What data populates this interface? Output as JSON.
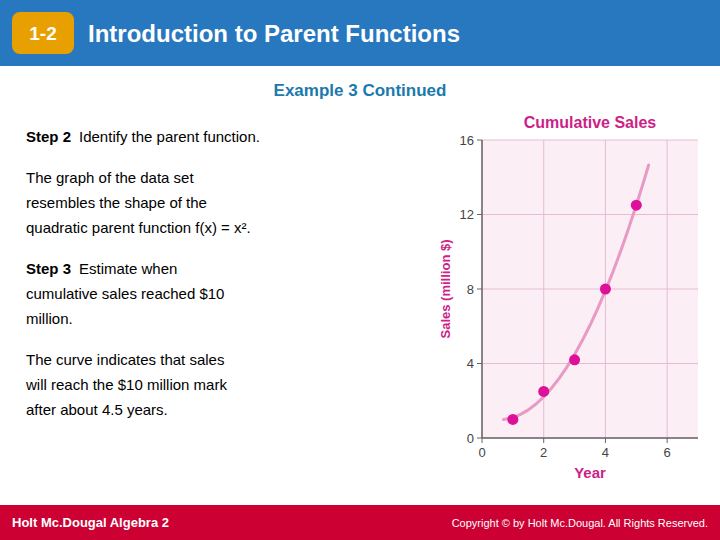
{
  "page": {
    "badge": "1-2",
    "heading": "Introduction to Parent Functions",
    "subtitle": "Example 3 Continued",
    "body": [
      {
        "bold": "Step 2",
        "lines": [
          "Identify the parent function."
        ]
      },
      {
        "lines": [
          "The graph of the data set",
          "resembles the shape of the",
          "quadratic parent function f(x) = x²."
        ]
      },
      {
        "bold": "Step 3",
        "lines": [
          "Estimate when",
          "cumulative sales reached $10",
          "million."
        ]
      },
      {
        "lines": [
          "The curve indicates that sales",
          "will reach the $10 million mark",
          "after about 4.5 years."
        ]
      }
    ],
    "footer_left": "Holt Mc.Dougal Algebra 2",
    "footer_right": "Copyright © by Holt Mc.Dougal. All Rights Reserved."
  },
  "chart_data": {
    "type": "scatter",
    "title": "Cumulative Sales",
    "xlabel": "Year",
    "ylabel": "Sales (million $)",
    "xlim": [
      0,
      7
    ],
    "ylim": [
      0,
      16
    ],
    "xticks": [
      0,
      2,
      4,
      6
    ],
    "yticks": [
      0,
      4,
      8,
      12,
      16
    ],
    "grid": true,
    "series": [
      {
        "type": "line",
        "color": "#e899c4",
        "x": [
          0.7,
          1,
          1.25,
          1.5,
          1.75,
          2,
          2.25,
          2.5,
          2.75,
          3,
          3.25,
          3.5,
          3.75,
          4,
          4.25,
          4.5,
          4.75,
          5,
          5.25,
          5.4
        ],
        "values": [
          0.9885,
          1.097143,
          1.267232,
          1.509643,
          1.824375,
          2.211429,
          2.670804,
          3.2025,
          3.806518,
          4.482857,
          5.231518,
          6.0525,
          6.945804,
          7.911429,
          8.949375,
          10.059643,
          11.242232,
          12.497143,
          13.824375,
          14.655428
        ]
      },
      {
        "type": "scatter",
        "color": "#dd1199",
        "x": [
          1,
          2,
          3,
          4,
          5
        ],
        "values": [
          1,
          2.5,
          4.2,
          8.0,
          12.5
        ]
      }
    ]
  }
}
